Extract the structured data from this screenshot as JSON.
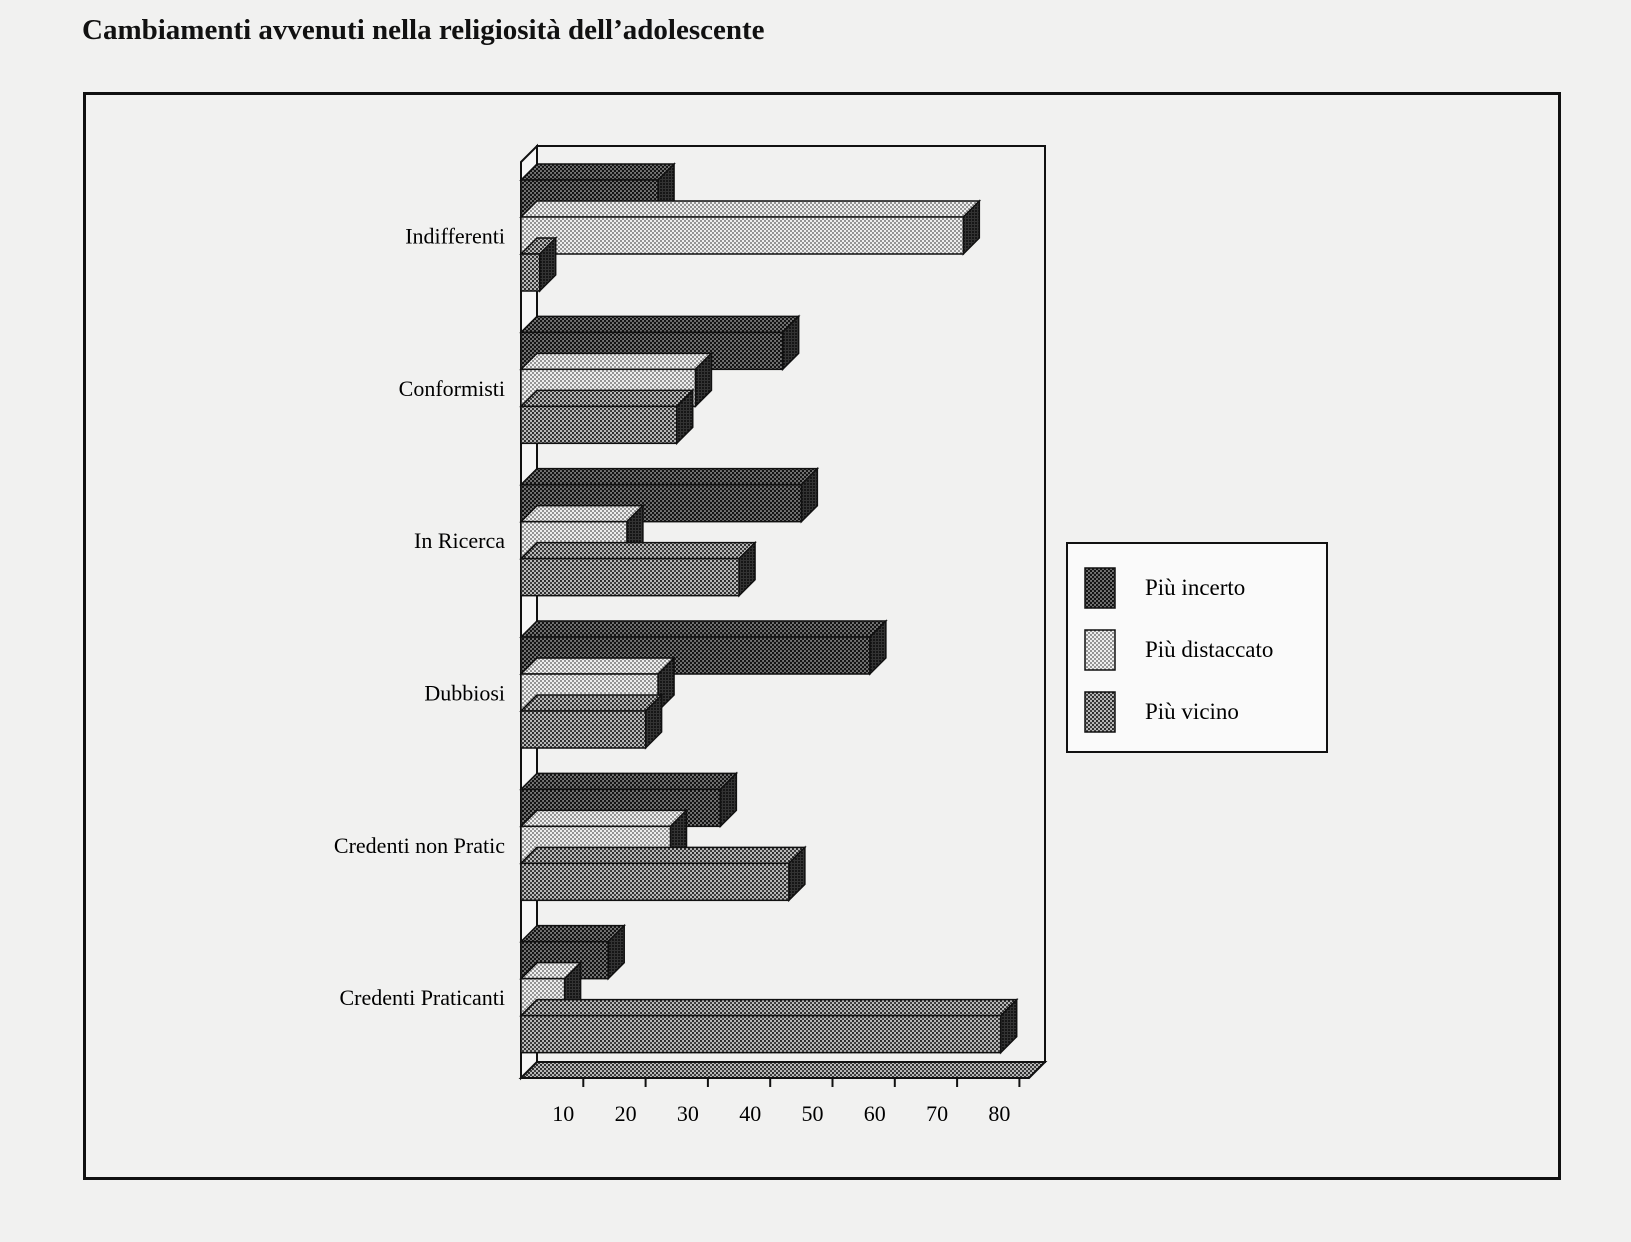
{
  "chart_data": {
    "type": "bar",
    "orientation": "horizontal",
    "style": "3d",
    "title": "Cambiamenti avvenuti nella religiosità dell’adolescente",
    "xlabel": "",
    "ylabel": "",
    "categories": [
      "Indifferenti",
      "Conformisti",
      "In Ricerca",
      "Dubbiosi",
      "Credenti non Pratic",
      "Credenti Praticanti"
    ],
    "series": [
      {
        "name": "Più incerto",
        "values": [
          22,
          42,
          45,
          56,
          32,
          14
        ],
        "color": "#3a3a3a"
      },
      {
        "name": "Più distaccato",
        "values": [
          71,
          28,
          17,
          22,
          24,
          7
        ],
        "color": "#cfcfcf"
      },
      {
        "name": "Più vicino",
        "values": [
          3,
          25,
          35,
          20,
          43,
          77
        ],
        "color": "#8a8a8a"
      }
    ],
    "xlim": [
      0,
      80
    ],
    "xticks": [
      "10",
      "20",
      "30",
      "40",
      "50",
      "60",
      "70",
      "80"
    ],
    "grid": false,
    "legend": "right"
  }
}
